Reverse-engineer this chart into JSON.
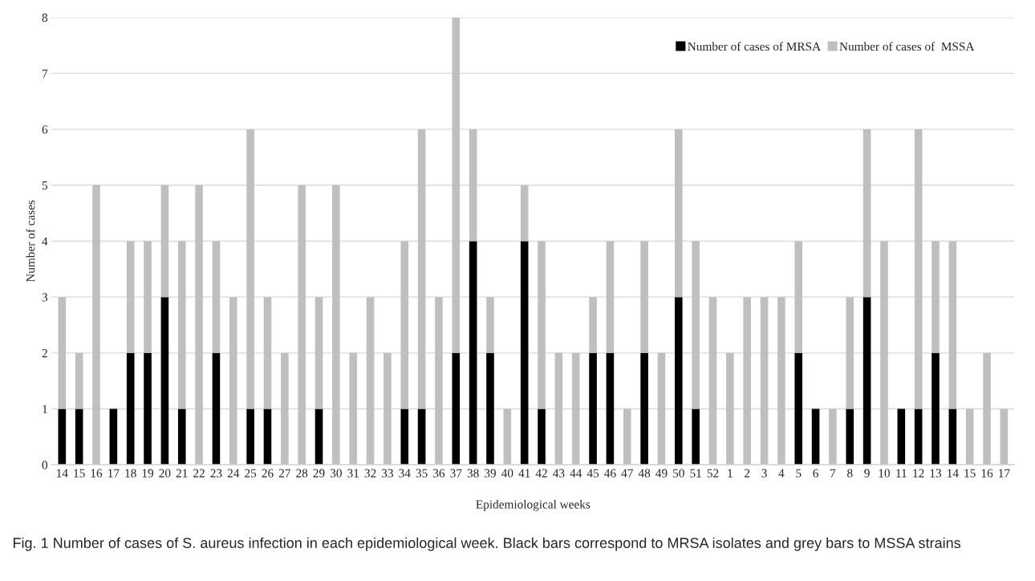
{
  "chart_data": {
    "type": "bar",
    "stacked": true,
    "xlabel": "Epidemiological weeks",
    "ylabel": "Number of cases",
    "categories": [
      "14",
      "15",
      "16",
      "17",
      "18",
      "19",
      "20",
      "21",
      "22",
      "23",
      "24",
      "25",
      "26",
      "27",
      "28",
      "29",
      "30",
      "31",
      "32",
      "33",
      "34",
      "35",
      "36",
      "37",
      "38",
      "39",
      "40",
      "41",
      "42",
      "43",
      "44",
      "45",
      "46",
      "47",
      "48",
      "49",
      "50",
      "51",
      "52",
      "1",
      "2",
      "3",
      "4",
      "5",
      "6",
      "7",
      "8",
      "9",
      "10",
      "11",
      "12",
      "13",
      "14",
      "15",
      "16",
      "17"
    ],
    "series": [
      {
        "name": "Number of cases of MRSA",
        "color": "#000000",
        "values": [
          1,
          1,
          0,
          1,
          2,
          2,
          3,
          1,
          0,
          2,
          0,
          1,
          1,
          0,
          0,
          1,
          0,
          0,
          0,
          0,
          1,
          1,
          0,
          2,
          4,
          2,
          0,
          4,
          1,
          0,
          0,
          2,
          2,
          0,
          2,
          0,
          3,
          1,
          0,
          0,
          0,
          0,
          0,
          2,
          1,
          0,
          1,
          3,
          0,
          1,
          1,
          2,
          1,
          0,
          0,
          0
        ]
      },
      {
        "name": "Number of cases of  MSSA",
        "color": "#bfbfbf",
        "values": [
          2,
          1,
          5,
          0,
          2,
          2,
          2,
          3,
          5,
          2,
          3,
          5,
          2,
          2,
          5,
          2,
          5,
          2,
          3,
          2,
          3,
          5,
          3,
          6,
          2,
          1,
          1,
          1,
          3,
          2,
          2,
          1,
          2,
          1,
          2,
          2,
          3,
          3,
          3,
          2,
          3,
          3,
          3,
          2,
          0,
          1,
          2,
          3,
          4,
          0,
          5,
          2,
          3,
          1,
          2,
          1
        ]
      }
    ],
    "ylim": [
      0,
      8
    ],
    "yticks": [
      0,
      1,
      2,
      3,
      4,
      5,
      6,
      7,
      8
    ],
    "grid": "y",
    "legend": "top right",
    "annotations": [
      "Fig. 1 Number of cases of S. aureus infection in each epidemiological week. Black bars correspond to MRSA isolates and grey bars to MSSA strains"
    ]
  }
}
